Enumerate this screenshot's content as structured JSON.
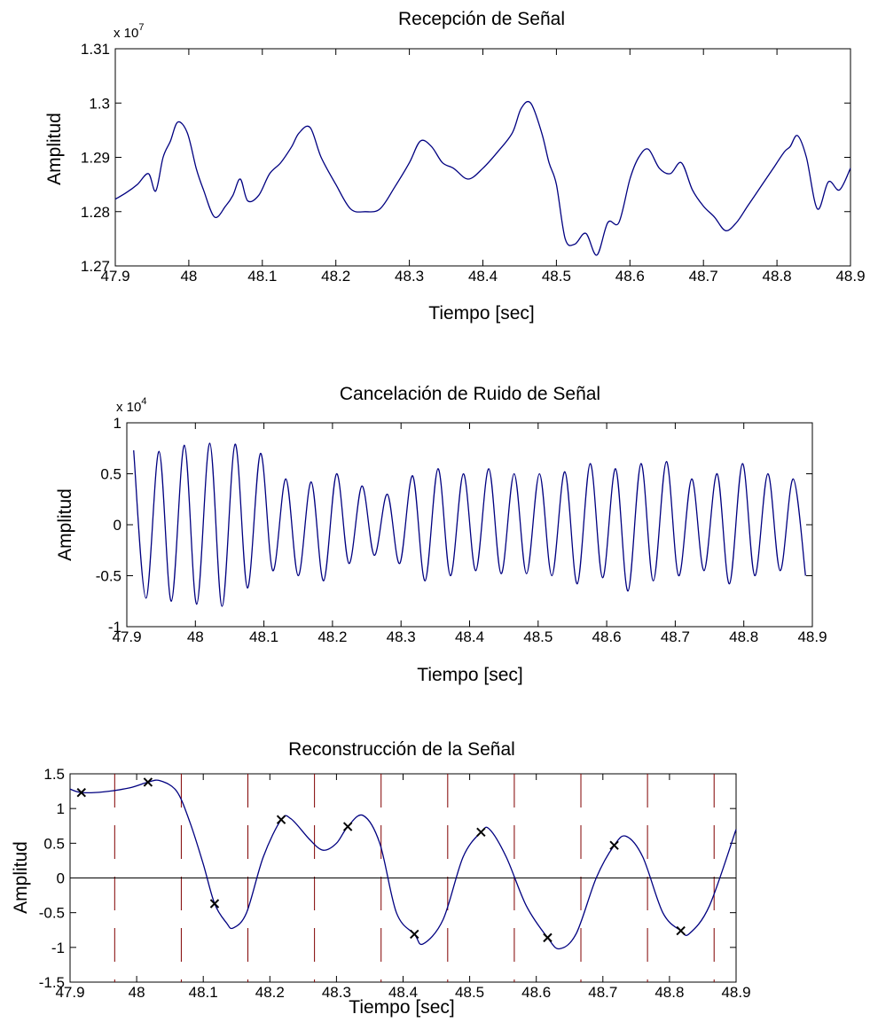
{
  "chart_data": [
    {
      "type": "line",
      "title": "Recepción de Señal",
      "xlabel": "Tiempo [sec]",
      "ylabel": "Amplitud",
      "xlim": [
        47.9,
        48.9
      ],
      "ylim": [
        1.27,
        1.31
      ],
      "y_multiplier": "x 10",
      "y_multiplier_exp": "7",
      "x_ticks": [
        "47.9",
        "48",
        "48.1",
        "48.2",
        "48.3",
        "48.4",
        "48.5",
        "48.6",
        "48.7",
        "48.8",
        "48.9"
      ],
      "y_ticks": [
        "1.27",
        "1.28",
        "1.29",
        "1.3",
        "1.31"
      ],
      "line_color": "#000080",
      "grid": false,
      "series": [
        {
          "x": [
            47.9,
            47.915,
            47.93,
            47.945,
            47.955,
            47.965,
            47.975,
            47.985,
            47.998,
            48.01,
            48.02,
            48.035,
            48.05,
            48.06,
            48.07,
            48.08,
            48.095,
            48.11,
            48.125,
            48.14,
            48.15,
            48.165,
            48.18,
            48.2,
            48.22,
            48.24,
            48.26,
            48.28,
            48.3,
            48.315,
            48.33,
            48.345,
            48.36,
            48.38,
            48.4,
            48.42,
            48.44,
            48.452,
            48.465,
            48.48,
            48.49,
            48.5,
            48.512,
            48.525,
            48.54,
            48.555,
            48.57,
            48.585,
            48.6,
            48.612,
            48.625,
            48.64,
            48.655,
            48.67,
            48.685,
            48.7,
            48.715,
            48.73,
            48.745,
            48.76,
            48.78,
            48.795,
            48.81,
            48.818,
            48.828,
            48.84,
            48.855,
            48.87,
            48.885,
            48.9
          ],
          "y": [
            1.2823,
            1.2835,
            1.285,
            1.287,
            1.2838,
            1.29,
            1.293,
            1.2965,
            1.2945,
            1.288,
            1.284,
            1.279,
            1.281,
            1.283,
            1.286,
            1.282,
            1.283,
            1.287,
            1.289,
            1.292,
            1.2945,
            1.2955,
            1.29,
            1.285,
            1.2805,
            1.28,
            1.2805,
            1.2845,
            1.289,
            1.293,
            1.292,
            1.289,
            1.288,
            1.286,
            1.288,
            1.291,
            1.2945,
            1.299,
            1.3,
            1.2945,
            1.289,
            1.285,
            1.275,
            1.274,
            1.276,
            1.272,
            1.278,
            1.278,
            1.286,
            1.29,
            1.2915,
            1.288,
            1.287,
            1.289,
            1.284,
            1.281,
            1.279,
            1.2765,
            1.278,
            1.281,
            1.285,
            1.288,
            1.291,
            1.292,
            1.294,
            1.29,
            1.2805,
            1.2855,
            1.284,
            1.288
          ]
        }
      ]
    },
    {
      "type": "line",
      "title": "Cancelación de Ruido de Señal",
      "xlabel": "Tiempo [sec]",
      "ylabel": "Amplitud",
      "xlim": [
        47.9,
        48.9
      ],
      "ylim": [
        -1,
        1
      ],
      "y_multiplier": "x 10",
      "y_multiplier_exp": "4",
      "x_ticks": [
        "47.9",
        "48",
        "48.1",
        "48.2",
        "48.3",
        "48.4",
        "48.5",
        "48.6",
        "48.7",
        "48.8",
        "48.9"
      ],
      "y_ticks": [
        "-1",
        "-0.5",
        "0",
        "0.5",
        "1"
      ],
      "line_color": "#000080",
      "grid": false,
      "series": [
        {
          "x": [
            47.91,
            47.928,
            47.947,
            47.965,
            47.984,
            48.002,
            48.021,
            48.039,
            48.058,
            48.076,
            48.095,
            48.113,
            48.132,
            48.15,
            48.169,
            48.187,
            48.206,
            48.224,
            48.243,
            48.261,
            48.28,
            48.298,
            48.317,
            48.335,
            48.354,
            48.372,
            48.391,
            48.409,
            48.428,
            48.446,
            48.465,
            48.483,
            48.502,
            48.52,
            48.539,
            48.557,
            48.576,
            48.594,
            48.613,
            48.631,
            48.65,
            48.668,
            48.687,
            48.705,
            48.724,
            48.742,
            48.761,
            48.779,
            48.798,
            48.816,
            48.835,
            48.853,
            48.872,
            48.89
          ],
          "y": [
            0.73,
            -0.72,
            0.72,
            -0.75,
            0.78,
            -0.78,
            0.8,
            -0.8,
            0.79,
            -0.62,
            0.7,
            -0.45,
            0.45,
            -0.5,
            0.42,
            -0.55,
            0.5,
            -0.38,
            0.38,
            -0.3,
            0.3,
            -0.38,
            0.48,
            -0.55,
            0.55,
            -0.5,
            0.5,
            -0.45,
            0.55,
            -0.48,
            0.5,
            -0.48,
            0.5,
            -0.5,
            0.52,
            -0.58,
            0.6,
            -0.52,
            0.55,
            -0.65,
            0.6,
            -0.55,
            0.62,
            -0.5,
            0.45,
            -0.45,
            0.5,
            -0.58,
            0.6,
            -0.5,
            0.5,
            -0.45,
            0.45,
            -0.5
          ]
        }
      ]
    },
    {
      "type": "line",
      "title": "Reconstrucción de la Señal",
      "xlabel": "Tiempo [sec]",
      "ylabel": "Amplitud",
      "xlim": [
        47.9,
        48.9
      ],
      "ylim": [
        -1.5,
        1.5
      ],
      "x_ticks": [
        "47.9",
        "48",
        "48.1",
        "48.2",
        "48.3",
        "48.4",
        "48.5",
        "48.6",
        "48.7",
        "48.8",
        "48.9"
      ],
      "y_ticks": [
        "-1.5",
        "-1",
        "-0.5",
        "0",
        "0.5",
        "1",
        "1.5"
      ],
      "line_color": "#000080",
      "marker_color": "#000000",
      "divider_color": "#800000",
      "grid": false,
      "zero_line": true,
      "dividers_x": [
        47.967,
        48.067,
        48.167,
        48.267,
        48.367,
        48.467,
        48.567,
        48.667,
        48.767,
        48.867
      ],
      "samples": {
        "x": [
          47.917,
          48.017,
          48.117,
          48.217,
          48.317,
          48.417,
          48.517,
          48.617,
          48.717,
          48.817
        ],
        "y": [
          1.23,
          1.38,
          -0.37,
          0.84,
          0.74,
          -0.81,
          0.66,
          -0.86,
          0.47,
          -0.76
        ]
      },
      "series": [
        {
          "x": [
            47.9,
            47.917,
            47.95,
            47.99,
            48.017,
            48.035,
            48.06,
            48.08,
            48.1,
            48.117,
            48.135,
            48.145,
            48.165,
            48.19,
            48.217,
            48.232,
            48.26,
            48.28,
            48.3,
            48.317,
            48.34,
            48.365,
            48.39,
            48.417,
            48.43,
            48.46,
            48.49,
            48.517,
            48.53,
            48.555,
            48.585,
            48.617,
            48.635,
            48.66,
            48.69,
            48.717,
            48.735,
            48.76,
            48.79,
            48.817,
            48.83,
            48.86,
            48.9
          ],
          "y": [
            1.28,
            1.23,
            1.24,
            1.3,
            1.38,
            1.4,
            1.25,
            0.8,
            0.2,
            -0.37,
            -0.65,
            -0.72,
            -0.5,
            0.3,
            0.84,
            0.85,
            0.55,
            0.4,
            0.5,
            0.74,
            0.9,
            0.5,
            -0.5,
            -0.81,
            -0.95,
            -0.6,
            0.3,
            0.66,
            0.7,
            0.3,
            -0.4,
            -0.86,
            -1.02,
            -0.8,
            0.0,
            0.47,
            0.6,
            0.3,
            -0.5,
            -0.76,
            -0.8,
            -0.4,
            0.7
          ]
        }
      ]
    }
  ]
}
